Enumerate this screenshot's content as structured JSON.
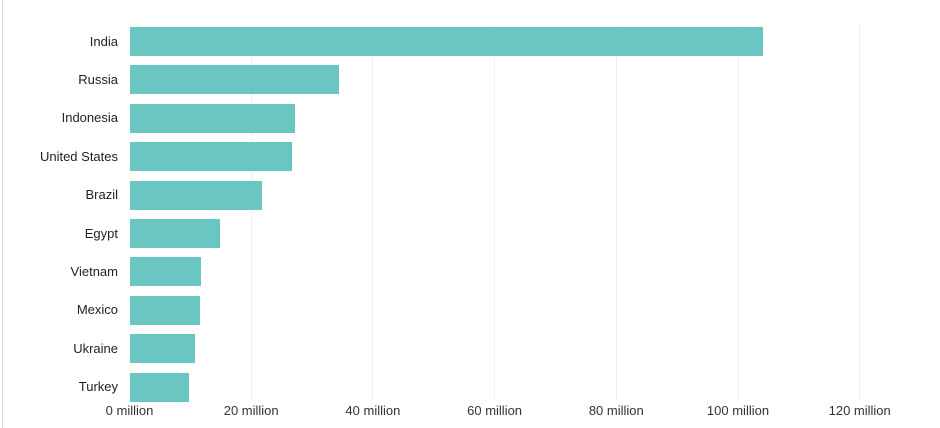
{
  "chart_data": {
    "type": "bar",
    "orientation": "horizontal",
    "categories": [
      "India",
      "Russia",
      "Indonesia",
      "United States",
      "Brazil",
      "Egypt",
      "Vietnam",
      "Mexico",
      "Ukraine",
      "Turkey"
    ],
    "values": [
      104.1,
      34.4,
      27.2,
      26.7,
      21.8,
      14.9,
      11.8,
      11.6,
      10.8,
      9.8
    ],
    "unit": "million",
    "x_ticks": [
      0,
      20,
      40,
      60,
      80,
      100,
      120
    ],
    "x_tick_labels": [
      "0 million",
      "20 million",
      "40 million",
      "60 million",
      "80 million",
      "100 million",
      "120 million"
    ],
    "xlim": [
      0,
      133
    ],
    "grid": true,
    "legend": false,
    "colors": {
      "bar": "#6AC6C1",
      "gridline": "#EFEFEF",
      "category_label": "#222222",
      "tick_label": "#333333",
      "card_border": "#DDDDDD",
      "background": "#FFFFFF"
    }
  }
}
